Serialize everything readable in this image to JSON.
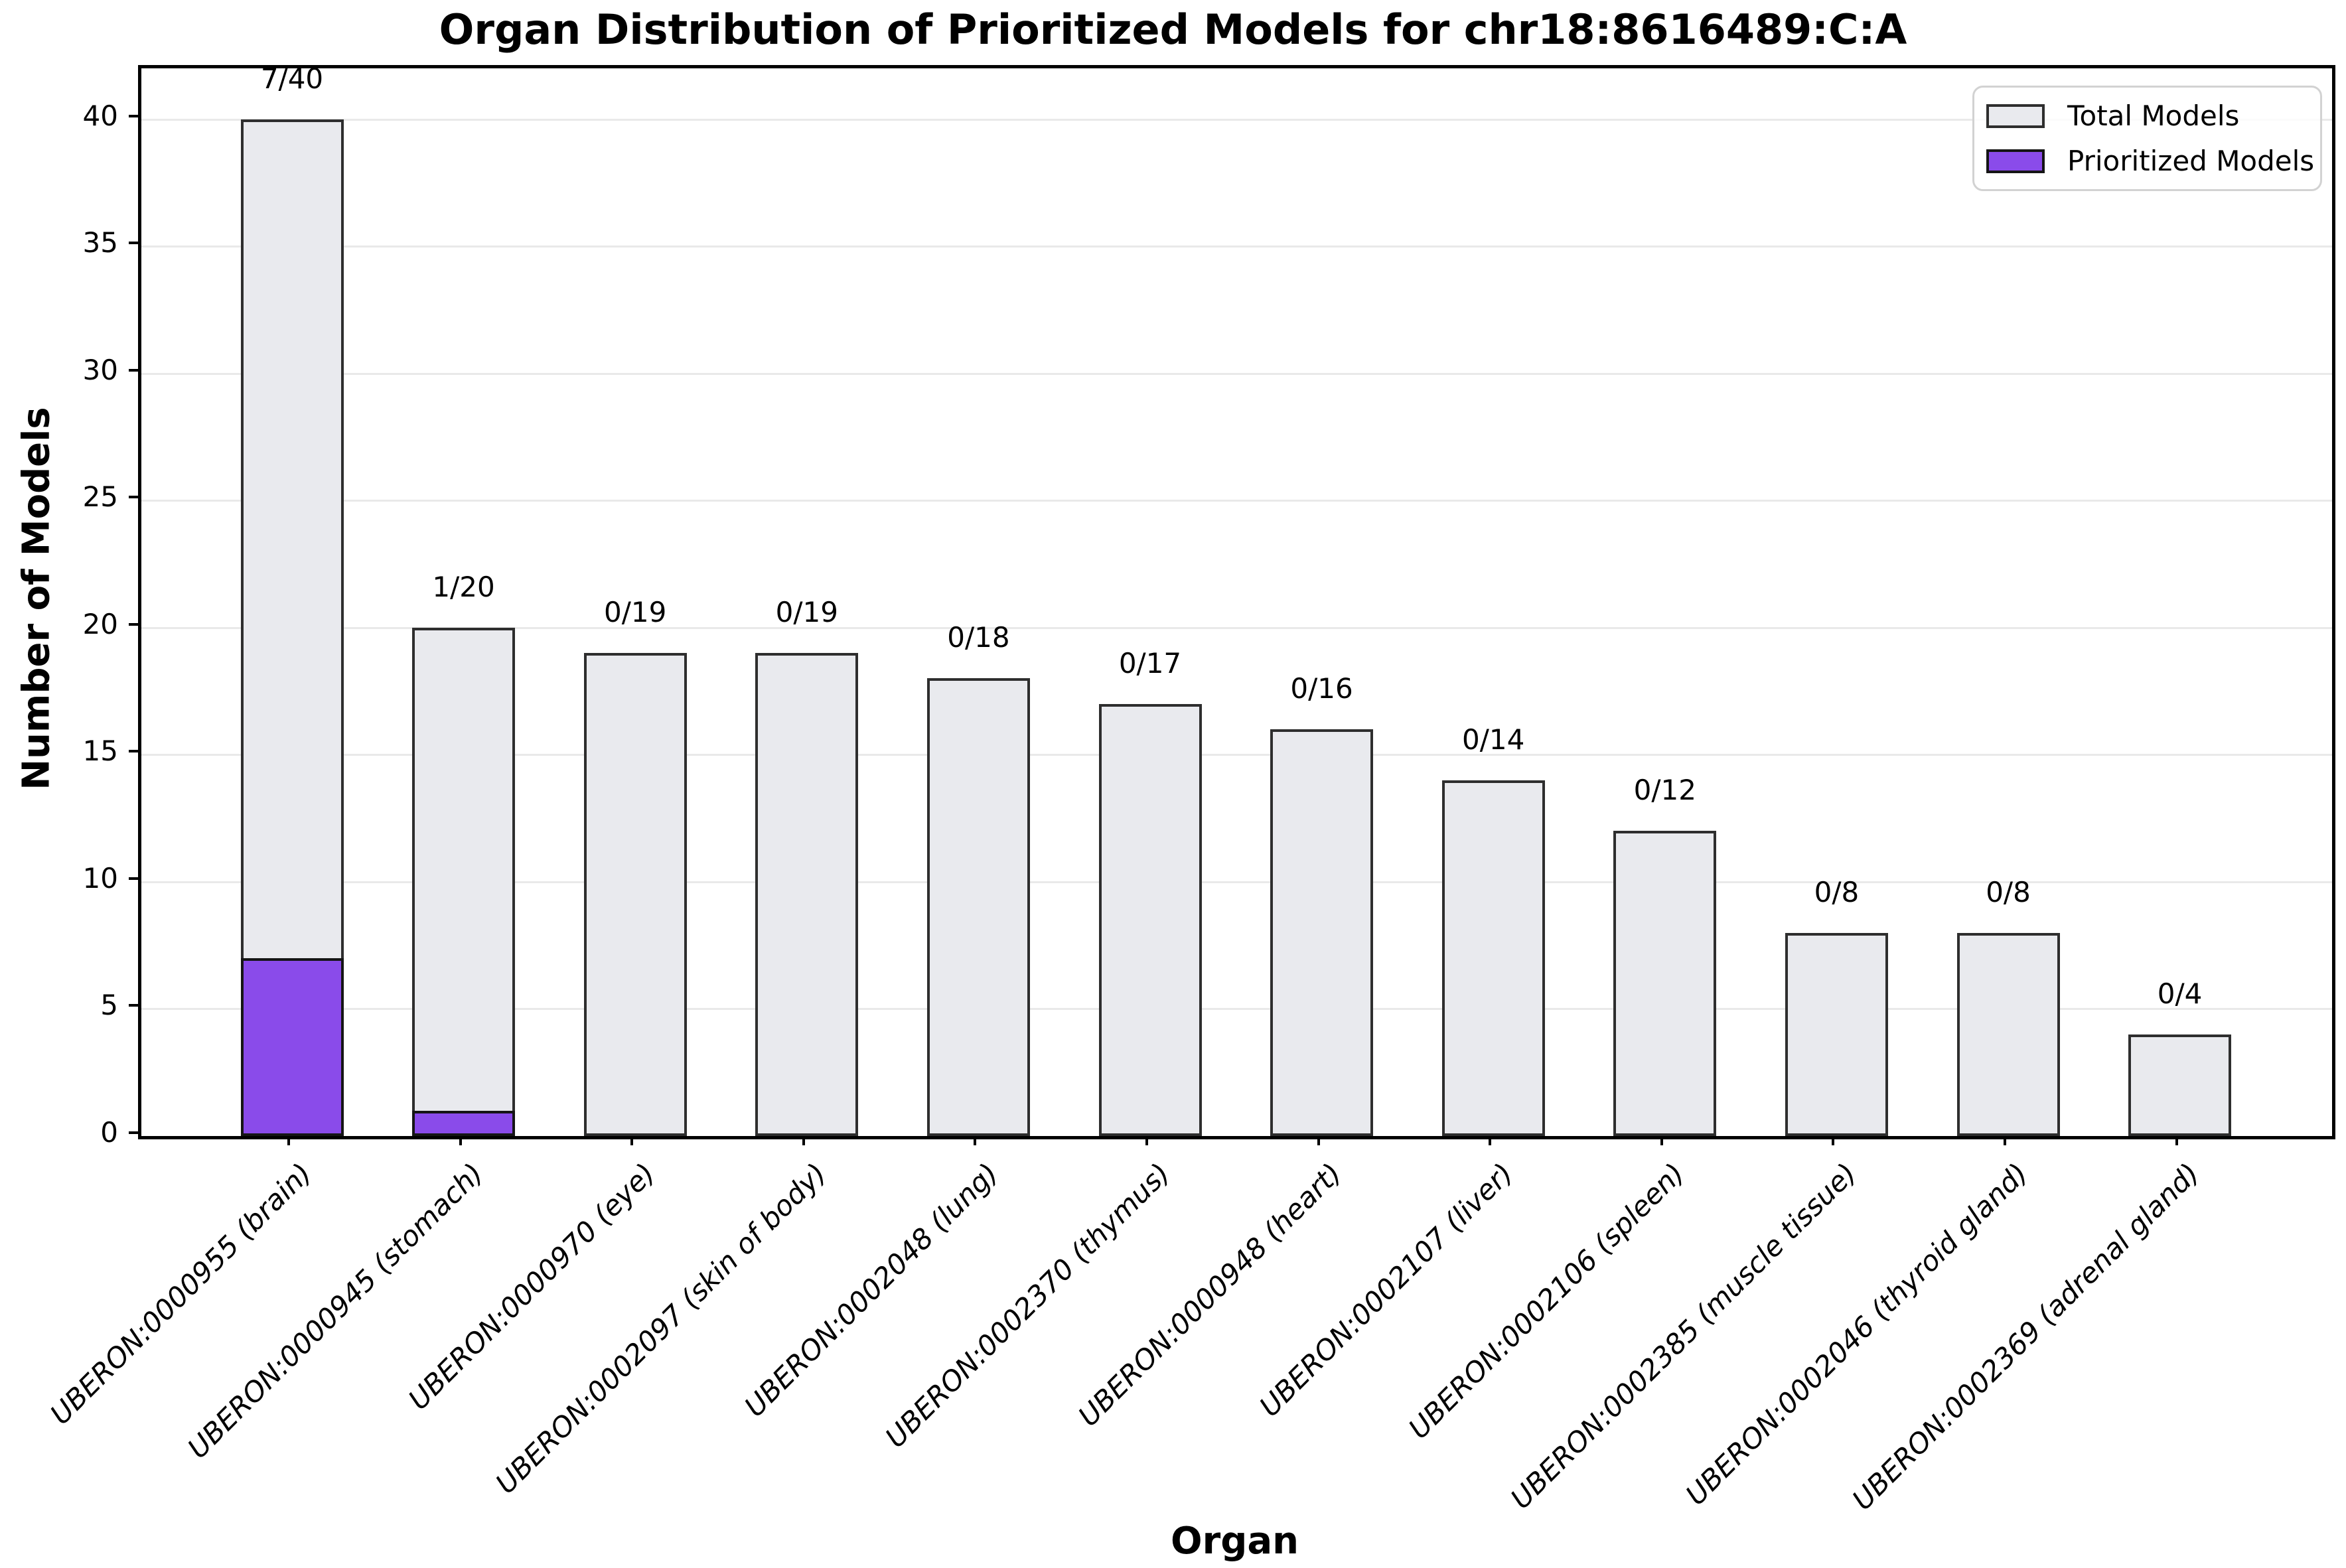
{
  "chart_data": {
    "type": "bar",
    "title": "Organ Distribution of Prioritized Models for chr18:8616489:C:A",
    "xlabel": "Organ",
    "ylabel": "Number of Models",
    "ylim": [
      0,
      42
    ],
    "yticks": [
      0,
      5,
      10,
      15,
      20,
      25,
      30,
      35,
      40
    ],
    "grid": "horizontal",
    "legend_position": "upper-right",
    "categories": [
      "UBERON:0000955 (brain)",
      "UBERON:0000945 (stomach)",
      "UBERON:0000970 (eye)",
      "UBERON:0002097 (skin of body)",
      "UBERON:0002048 (lung)",
      "UBERON:0002370 (thymus)",
      "UBERON:0000948 (heart)",
      "UBERON:0002107 (liver)",
      "UBERON:0002106 (spleen)",
      "UBERON:0002385 (muscle tissue)",
      "UBERON:0002046 (thyroid gland)",
      "UBERON:0002369 (adrenal gland)"
    ],
    "series": [
      {
        "name": "Total Models",
        "values": [
          40,
          20,
          19,
          19,
          18,
          17,
          16,
          14,
          12,
          8,
          8,
          4
        ],
        "fill": "#e9eaee",
        "edge": "#2e2e2e"
      },
      {
        "name": "Prioritized Models",
        "values": [
          7,
          1,
          0,
          0,
          0,
          0,
          0,
          0,
          0,
          0,
          0,
          0
        ],
        "fill": "#8a4bea",
        "edge": "#151515"
      }
    ],
    "annotations": [
      "7/40",
      "1/20",
      "0/19",
      "0/19",
      "0/18",
      "0/17",
      "0/16",
      "0/14",
      "0/12",
      "0/8",
      "0/8",
      "0/4"
    ],
    "colors": {
      "grid": "#e9e9e9",
      "spine": "#000000",
      "text": "#000000",
      "legend_border": "#d2d2d2"
    }
  }
}
